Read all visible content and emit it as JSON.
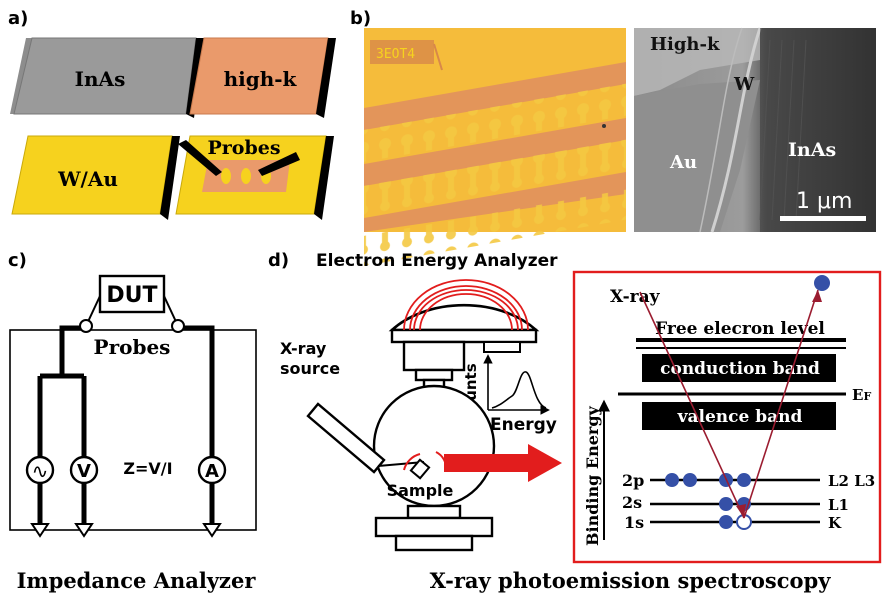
{
  "panel_a": {
    "label": "a)",
    "tiles": {
      "inas": "InAs",
      "highk": "high-k",
      "wau": "W/Au"
    },
    "probes_label": "Probes"
  },
  "panel_b": {
    "label": "b)",
    "optical_text": "ЗЕОТ4",
    "sem": {
      "highk": "High-k",
      "w": "W",
      "au": "Au",
      "inas": "InAs",
      "scale": "1 μm"
    }
  },
  "panel_c": {
    "label": "c)",
    "dut": "DUT",
    "probes": "Probes",
    "source": "∿",
    "voltmeter": "V",
    "ammeter": "A",
    "formula": "Z=V/I",
    "caption": "Impedance Analyzer"
  },
  "panel_d": {
    "label": "d)",
    "analyzer": "Electron Energy Analyzer",
    "xray_source_1": "X-ray",
    "xray_source_2": "source",
    "sample": "Sample",
    "counts": "counts",
    "energy": "Energy",
    "caption": "X-ray photoemission spectroscopy",
    "levels": {
      "xray": "X-ray",
      "free": "Free elecron level",
      "conduction": "conduction band",
      "ef_main": "E",
      "ef_sub": "F",
      "valence": "valence band",
      "binding": "Binding Energy",
      "orb_2p": "2p",
      "orb_2s": "2s",
      "orb_1s": "1s",
      "shell_l23": "L2 L3",
      "shell_l1": "L1",
      "shell_k": "K"
    }
  },
  "colors": {
    "gold": "#f6d21e",
    "grey": "#999999",
    "orange": "#e9986a",
    "red": "#e21d1d",
    "dark_red": "#9b1c30",
    "electron_blue": "#3550a7"
  }
}
